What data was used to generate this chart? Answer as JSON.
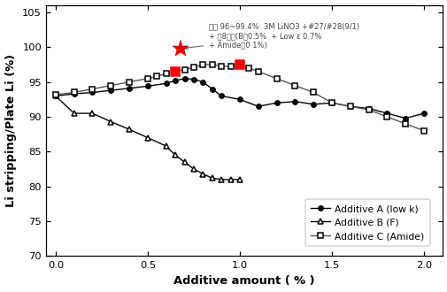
{
  "additive_A_x": [
    0.0,
    0.1,
    0.2,
    0.3,
    0.4,
    0.5,
    0.6,
    0.65,
    0.7,
    0.75,
    0.8,
    0.85,
    0.9,
    1.0,
    1.1,
    1.2,
    1.3,
    1.4,
    1.5,
    1.6,
    1.7,
    1.8,
    1.9,
    2.0
  ],
  "additive_A_y": [
    93.0,
    93.3,
    93.5,
    93.8,
    94.1,
    94.4,
    94.8,
    95.2,
    95.5,
    95.4,
    95.0,
    94.0,
    93.0,
    92.5,
    91.5,
    92.0,
    92.2,
    91.8,
    92.0,
    91.5,
    91.2,
    90.5,
    89.8,
    90.5
  ],
  "additive_B_x": [
    0.0,
    0.1,
    0.2,
    0.3,
    0.4,
    0.5,
    0.6,
    0.65,
    0.7,
    0.75,
    0.8,
    0.85,
    0.9,
    0.95,
    1.0
  ],
  "additive_B_y": [
    93.0,
    90.5,
    90.5,
    89.3,
    88.2,
    87.0,
    85.8,
    84.5,
    83.5,
    82.5,
    81.8,
    81.2,
    81.0,
    81.0,
    81.0
  ],
  "additive_C_x": [
    0.0,
    0.1,
    0.2,
    0.3,
    0.4,
    0.5,
    0.55,
    0.6,
    0.65,
    0.7,
    0.75,
    0.8,
    0.85,
    0.9,
    0.95,
    1.0,
    1.05,
    1.1,
    1.2,
    1.3,
    1.4,
    1.5,
    1.6,
    1.7,
    1.8,
    1.9,
    2.0
  ],
  "additive_C_y": [
    93.2,
    93.5,
    94.0,
    94.5,
    95.0,
    95.5,
    95.8,
    96.2,
    96.5,
    96.8,
    97.1,
    97.5,
    97.5,
    97.3,
    97.2,
    97.5,
    97.0,
    96.5,
    95.5,
    94.5,
    93.5,
    92.0,
    91.5,
    91.0,
    90.0,
    89.0,
    88.0
  ],
  "star_x": 0.68,
  "star_y": 99.8,
  "red_square_A_x": 0.65,
  "red_square_A_y": 96.5,
  "red_square_C_x": 1.0,
  "red_square_C_y": 97.5,
  "annotation_line1": "효율 96~99.4%: 3M LiNO3 +#27/#28(9/1)",
  "annotation_line2": "+ 쳊8가제(B계0.5%  + Low ε 0.7%",
  "annotation_line3": "+ Amide계0 1%)",
  "xlabel": "Additive amount ( % )",
  "ylabel": "Li stripping/Plate Li (%)",
  "xlim": [
    -0.05,
    2.1
  ],
  "ylim": [
    70,
    106
  ],
  "yticks": [
    70,
    75,
    80,
    85,
    90,
    95,
    100,
    105
  ],
  "xticks": [
    0.0,
    0.5,
    1.0,
    1.5,
    2.0
  ],
  "legend_labels": [
    "Additive A (low k)",
    "Additive B (F)",
    "Additive C (Amide)"
  ],
  "line_color": "black",
  "background_color": "#ffffff"
}
